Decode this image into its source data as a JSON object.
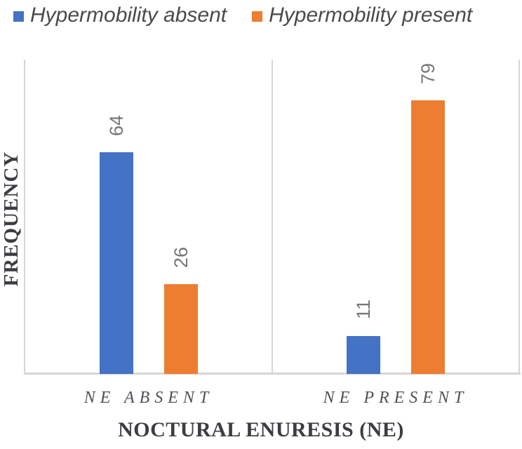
{
  "legend": {
    "position": "top",
    "items": [
      {
        "label": "Hypermobility absent",
        "color": "#4472C4"
      },
      {
        "label": "Hypermobility present",
        "color": "#ED7D31"
      }
    ]
  },
  "chart_data": {
    "type": "bar",
    "title": "",
    "categories": [
      "NE ABSENT",
      "NE PRESENT"
    ],
    "series": [
      {
        "name": "Hypermobility absent",
        "color": "#4472C4",
        "values": [
          64,
          11
        ]
      },
      {
        "name": "Hypermobility present",
        "color": "#ED7D31",
        "values": [
          26,
          79
        ]
      }
    ],
    "xlabel": "NOCTURAL ENURESIS (NE)",
    "ylabel": "FREQUENCY",
    "ylim": [
      0,
      90
    ],
    "grid": false,
    "legend_position": "top",
    "data_labels": true,
    "data_label_rotation": -90,
    "data_label_color": "#77777c",
    "frame_color": "#d6d6d6"
  }
}
